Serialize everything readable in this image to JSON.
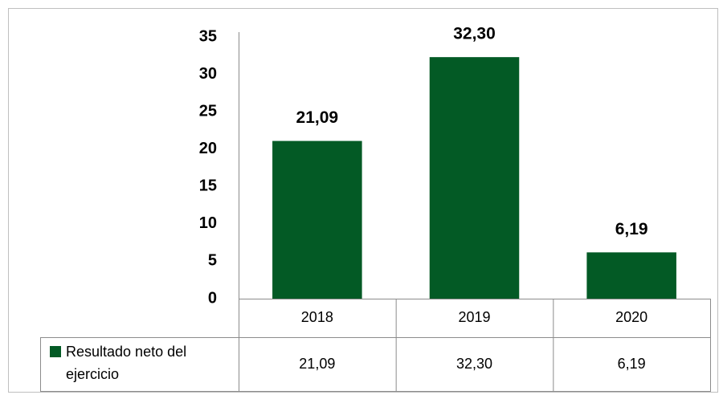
{
  "chart_data": {
    "type": "bar",
    "categories": [
      "2018",
      "2019",
      "2020"
    ],
    "series": [
      {
        "name": "Resultado neto del ejercicio",
        "color": "#035a25",
        "values": [
          21.09,
          32.3,
          6.19
        ],
        "value_labels": [
          "21,09",
          "32,30",
          "6,19"
        ]
      }
    ],
    "ylim": [
      0,
      35
    ],
    "yticks": [
      0,
      5,
      10,
      15,
      20,
      25,
      30,
      35
    ],
    "grid": false
  }
}
